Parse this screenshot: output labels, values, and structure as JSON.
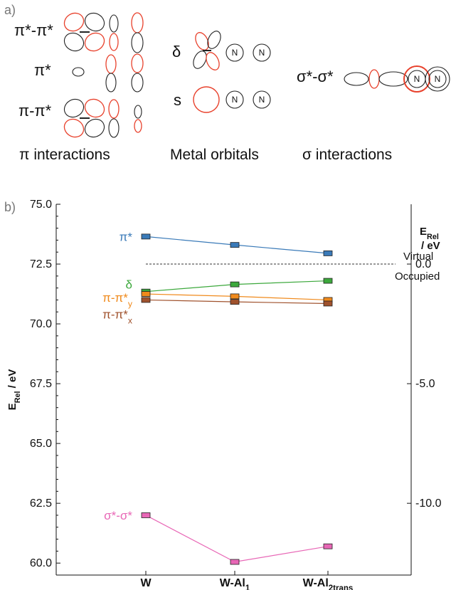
{
  "panel_a": {
    "label": "a)",
    "orbital_labels": {
      "pi_star_pi_star": "π*-π*",
      "pi_star": "π*",
      "pi_pi_star": "π-π*",
      "delta": "δ",
      "s": "s",
      "sigma_star_sigma_star": "σ*-σ*"
    },
    "nitrogen_label": "N",
    "section_titles": {
      "pi": "π interactions",
      "metal": "Metal orbitals",
      "sigma": "σ interactions"
    }
  },
  "panel_b": {
    "label": "b)"
  },
  "colors": {
    "pi_star": "#3a7ab8",
    "delta": "#3ca83c",
    "pi_pi_star_y": "#f08a1c",
    "pi_pi_star_x": "#a0522d",
    "sigma": "#e867b6",
    "orbital_red": "#e8412c",
    "orbital_black": "#222222"
  },
  "chart_data": {
    "type": "line",
    "categories": [
      "W",
      "W-Al1",
      "W-Al2trans"
    ],
    "category_labels": [
      {
        "main": "W",
        "sub": ""
      },
      {
        "main": "W-Al",
        "sub": "1"
      },
      {
        "main": "W-Al",
        "sub": "2trans"
      }
    ],
    "ylabel": {
      "main": "E",
      "sub": "Rel",
      "rest": " / eV"
    },
    "ylim": [
      59.5,
      75.0
    ],
    "yticks": [
      "75.0",
      "72.5",
      "70.0",
      "67.5",
      "65.0",
      "62.5",
      "60.0"
    ],
    "y2label": {
      "main": "E",
      "sub": "Rel",
      "rest": "/ eV"
    },
    "y2_ticks": [
      {
        "label": "0.0",
        "at": 72.5
      },
      {
        "label": "-5.0",
        "at": 67.5
      },
      {
        "label": "-10.0",
        "at": 62.5
      }
    ],
    "dividing_line": 72.5,
    "region_labels": {
      "upper": "Virtual",
      "lower": "Occupied"
    },
    "series": [
      {
        "name": "π*",
        "sub": "",
        "color_key": "pi_star",
        "values": [
          73.65,
          73.3,
          72.95
        ]
      },
      {
        "name": "δ",
        "sub": "",
        "color_key": "delta",
        "values": [
          71.35,
          71.65,
          71.8
        ]
      },
      {
        "name": "π-π*",
        "sub": "y",
        "color_key": "pi_pi_star_y",
        "values": [
          71.25,
          71.15,
          71.0
        ]
      },
      {
        "name": "π-π*",
        "sub": "x",
        "color_key": "pi_pi_star_x",
        "values": [
          71.0,
          70.92,
          70.85
        ]
      },
      {
        "name": "σ*-σ*",
        "sub": "",
        "color_key": "sigma",
        "values": [
          62.0,
          60.05,
          60.7
        ]
      }
    ]
  }
}
